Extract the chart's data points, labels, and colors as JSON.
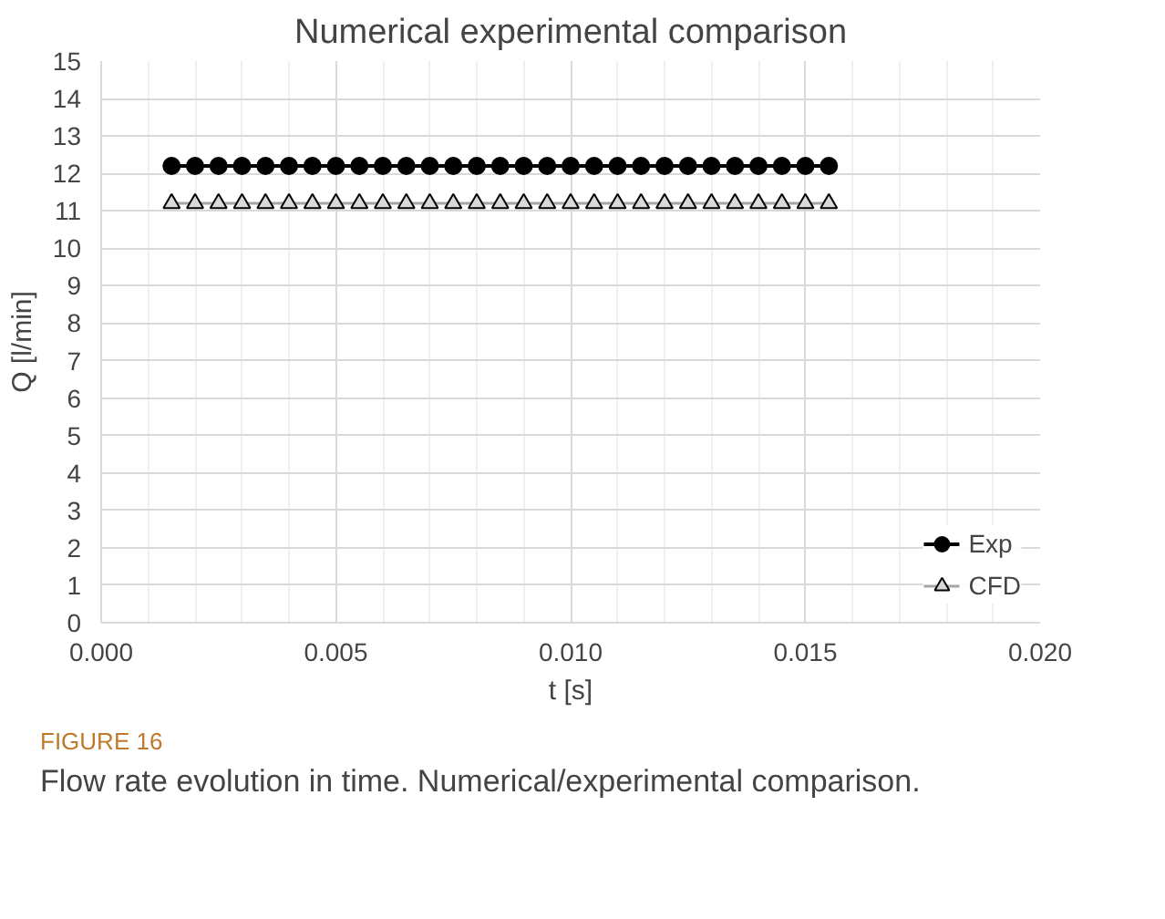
{
  "chart_data": {
    "type": "line",
    "title": "Numerical experimental comparison",
    "xlabel": "t [s]",
    "ylabel": "Q [l/min]",
    "x": [
      0.0015,
      0.002,
      0.0025,
      0.003,
      0.0035,
      0.004,
      0.0045,
      0.005,
      0.0055,
      0.006,
      0.0065,
      0.007,
      0.0075,
      0.008,
      0.0085,
      0.009,
      0.0095,
      0.01,
      0.0105,
      0.011,
      0.0115,
      0.012,
      0.0125,
      0.013,
      0.0135,
      0.014,
      0.0145,
      0.015,
      0.0155
    ],
    "series": [
      {
        "name": "Exp",
        "color": "#000000",
        "marker": "circle",
        "values": [
          12.2,
          12.2,
          12.2,
          12.2,
          12.2,
          12.2,
          12.2,
          12.2,
          12.2,
          12.2,
          12.2,
          12.2,
          12.2,
          12.2,
          12.2,
          12.2,
          12.2,
          12.2,
          12.2,
          12.2,
          12.2,
          12.2,
          12.2,
          12.2,
          12.2,
          12.2,
          12.2,
          12.2,
          12.2
        ]
      },
      {
        "name": "CFD",
        "color": "#a6a6a6",
        "marker": "triangle",
        "values": [
          11.2,
          11.2,
          11.2,
          11.2,
          11.2,
          11.2,
          11.2,
          11.2,
          11.2,
          11.2,
          11.2,
          11.2,
          11.2,
          11.2,
          11.2,
          11.2,
          11.2,
          11.2,
          11.2,
          11.2,
          11.2,
          11.2,
          11.2,
          11.2,
          11.2,
          11.2,
          11.2,
          11.2,
          11.2
        ]
      }
    ],
    "xlim": [
      0,
      0.02
    ],
    "xticks": [
      {
        "value": 0,
        "label": "0.000"
      },
      {
        "value": 0.005,
        "label": "0.005"
      },
      {
        "value": 0.01,
        "label": "0.010"
      },
      {
        "value": 0.015,
        "label": "0.015"
      },
      {
        "value": 0.02,
        "label": "0.020"
      }
    ],
    "ylim": [
      0,
      15
    ],
    "yticks": [
      0,
      1,
      2,
      3,
      4,
      5,
      6,
      7,
      8,
      9,
      10,
      11,
      12,
      13,
      14,
      15
    ],
    "grid": true,
    "legend": "bottom right",
    "annotations": [
      "FIGURE 16",
      "Flow rate evolution in time. Numerical/experimental comparison."
    ]
  }
}
